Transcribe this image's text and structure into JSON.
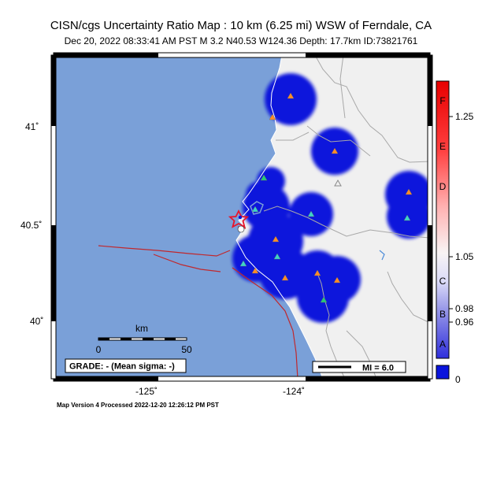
{
  "header": {
    "title": "CISN/cgs Uncertainty Ratio Map : 10 km (6.25 mi) WSW of Ferndale, CA",
    "subtitle": "Dec 20, 2022 08:33:41 AM PST   M 3.2   N40.53 W124.36   Depth: 17.7km   ID:73821761"
  },
  "map": {
    "lat_labels": [
      "41˚",
      "40.5˚",
      "40˚"
    ],
    "lon_labels": [
      "-125˚",
      "-124˚"
    ],
    "scale": {
      "title": "km",
      "min_label": "0",
      "max_label": "50"
    },
    "grade_text": "GRADE: - (Mean sigma: -)",
    "mmi_legend": "MI = 6.0",
    "colors": {
      "ocean": "#7aa0d8",
      "land": "#f0f0f0",
      "coverage": "#0a14dc",
      "fault": "#c0282d",
      "river": "#a8a8a8"
    }
  },
  "colorbar": {
    "letters": [
      "F",
      "E",
      "D",
      "C",
      "B",
      "A"
    ],
    "values": [
      "1.25",
      "1.05",
      "0.98",
      "0.96",
      "0"
    ]
  },
  "footer": {
    "text": "Map Version 4 Processed 2022-12-20 12:26:12 PM PST"
  }
}
